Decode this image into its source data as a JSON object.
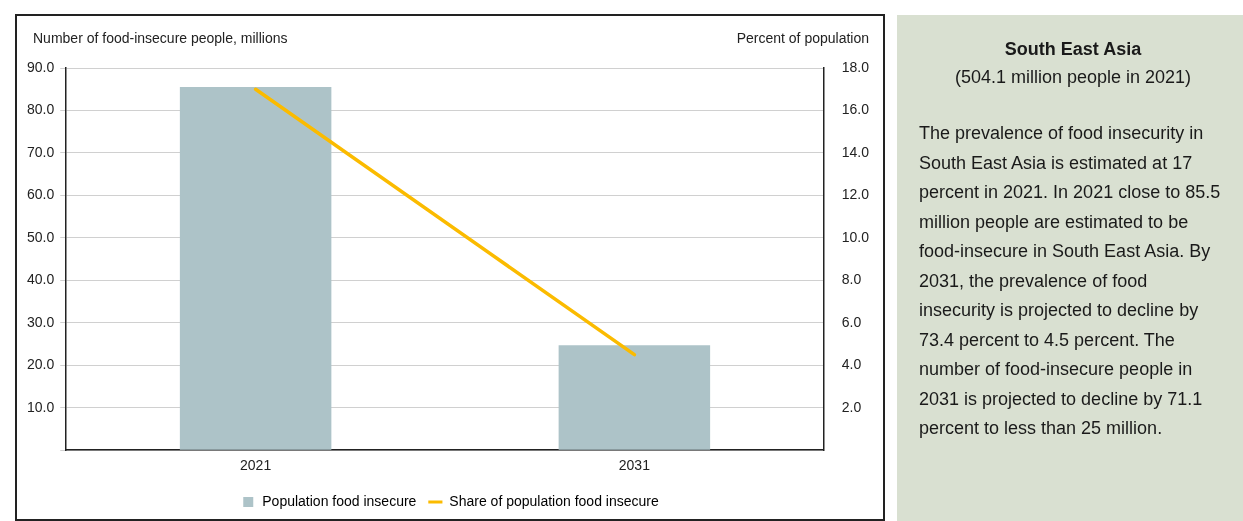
{
  "chart_data": [
    {
      "type": "bar",
      "categories": [
        "2021",
        "2031"
      ],
      "ylabel": "Number of food-insecure people, millions",
      "y2label": "Percent of population",
      "series": [
        {
          "name": "Population food insecure",
          "type": "bar",
          "color": "#adc3c8",
          "values": [
            85.5,
            24.7
          ]
        },
        {
          "name": "Share of population food insecure",
          "type": "line",
          "axis": "y2",
          "color": "#fbbb00",
          "values": [
            17,
            4.5
          ]
        }
      ],
      "ylim": [
        0,
        90
      ],
      "yticks": [
        {
          "value": 0,
          "label": null
        },
        {
          "value": 10,
          "label": "10.0"
        },
        {
          "value": 20,
          "label": "20.0"
        },
        {
          "value": 30,
          "label": "30.0"
        },
        {
          "value": 40,
          "label": "40.0"
        },
        {
          "value": 50,
          "label": "50.0"
        },
        {
          "value": 60,
          "label": "60.0"
        },
        {
          "value": 70,
          "label": "70.0"
        },
        {
          "value": 80,
          "label": "80.0"
        },
        {
          "value": 90,
          "label": "90.0"
        }
      ],
      "y2lim": [
        0,
        18
      ],
      "y2ticks": [
        {
          "value": 0,
          "label": null
        },
        {
          "value": 2,
          "label": "2.0"
        },
        {
          "value": 4,
          "label": "4.0"
        },
        {
          "value": 6,
          "label": "6.0"
        },
        {
          "value": 8,
          "label": "8.0"
        },
        {
          "value": 10,
          "label": "10.0"
        },
        {
          "value": 12,
          "label": "12.0"
        },
        {
          "value": 14,
          "label": "14.0"
        },
        {
          "value": 16,
          "label": "16.0"
        },
        {
          "value": 18,
          "label": "18.0"
        }
      ],
      "grid": "y",
      "legend": "bottom",
      "marker": "none",
      "line_style": "solid"
    },
    {
      "type": "other",
      "title": "South East Asia",
      "subtitle": "(504.1 million people in 2021)",
      "annotations": [
        "The prevalence of food insecurity in South East Asia is estimated at 17 percent in 2021. In 2021 close to 85.5 million people are estimated to be food-insecure in South East Asia. By 2031, the prevalence of food insecurity is projected to decline by 73.4 percent to 4.5 percent. The number of food-insecure people in 2031 is projected to decline by 71.1 percent to less than 25 million."
      ]
    }
  ]
}
